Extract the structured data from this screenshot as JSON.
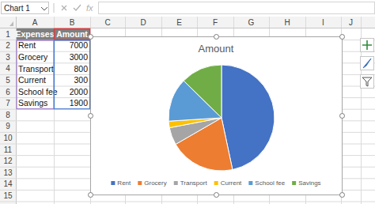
{
  "formula_bar": {
    "name_box": "Chart 1",
    "fx": "fx"
  },
  "sheet": {
    "columns": [
      "A",
      "B",
      "C",
      "D",
      "E",
      "F",
      "G",
      "H",
      "I",
      "J"
    ],
    "rows": [
      1,
      2,
      3,
      4,
      5,
      6,
      7,
      8,
      9,
      10,
      11,
      12,
      13,
      14,
      15
    ],
    "header": [
      "Expenses",
      "Amount"
    ],
    "cells": [
      [
        "Rent",
        7000
      ],
      [
        "Grocery",
        3000
      ],
      [
        "Transport",
        800
      ],
      [
        "Current",
        300
      ],
      [
        "School fee",
        2000
      ],
      [
        "Savings",
        1900
      ]
    ]
  },
  "chart_data": {
    "type": "pie",
    "title": "Amount",
    "categories": [
      "Rent",
      "Grocery",
      "Transport",
      "Current",
      "School fee",
      "Savings"
    ],
    "values": [
      7000,
      3000,
      800,
      300,
      2000,
      1900
    ],
    "colors": [
      "#4472c4",
      "#ed7d31",
      "#a5a5a5",
      "#ffc000",
      "#5b9bd5",
      "#70ad47"
    ],
    "legend": "bottom"
  }
}
